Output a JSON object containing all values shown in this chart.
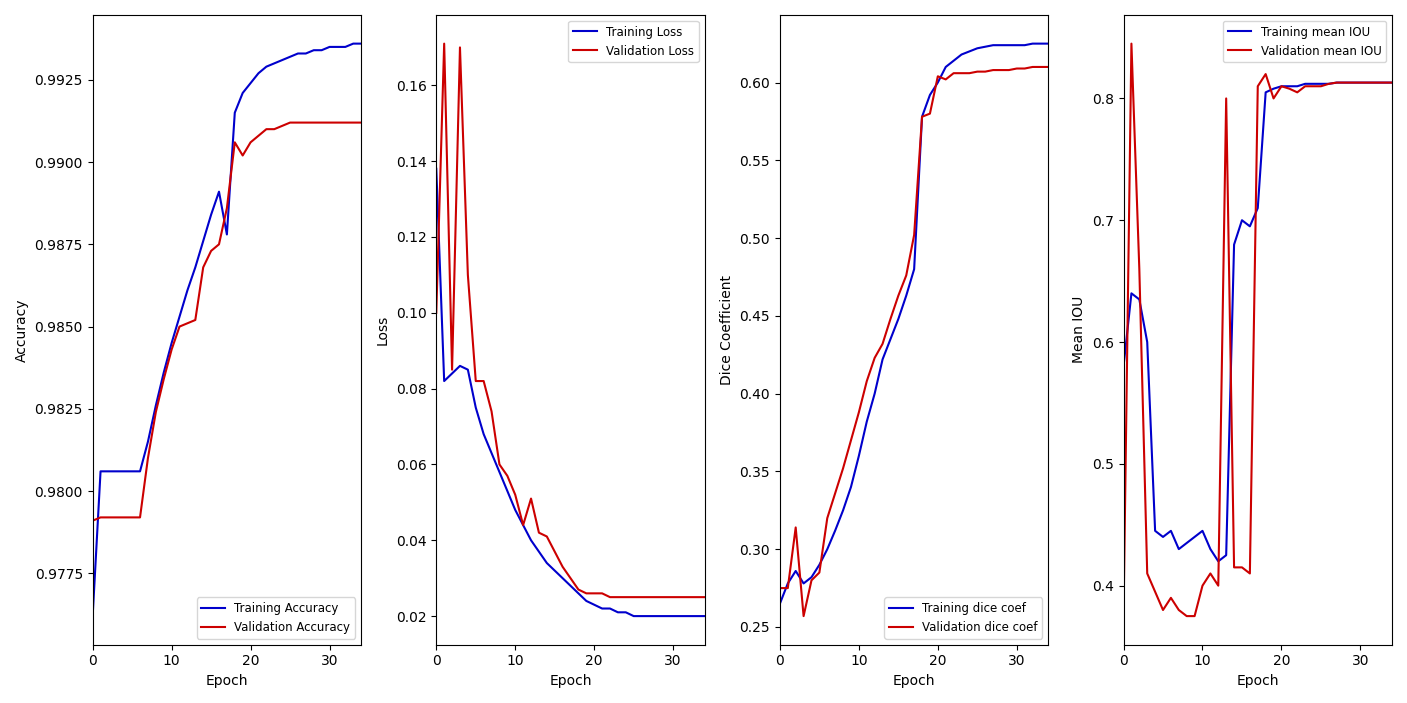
{
  "train_acc": [
    0.9762,
    0.9806,
    0.9806,
    0.9806,
    0.9806,
    0.9806,
    0.9806,
    0.9815,
    0.9826,
    0.9836,
    0.9845,
    0.9853,
    0.9861,
    0.9868,
    0.9876,
    0.9884,
    0.9891,
    0.9878,
    0.9915,
    0.9921,
    0.9924,
    0.9927,
    0.9929,
    0.993,
    0.9931,
    0.9932,
    0.9933,
    0.9933,
    0.9934,
    0.9934,
    0.9935,
    0.9935,
    0.9935,
    0.9936,
    0.9936
  ],
  "val_acc": [
    0.9791,
    0.9792,
    0.9792,
    0.9792,
    0.9792,
    0.9792,
    0.9792,
    0.981,
    0.9824,
    0.9834,
    0.9843,
    0.985,
    0.9851,
    0.9852,
    0.9868,
    0.9873,
    0.9875,
    0.9886,
    0.9906,
    0.9902,
    0.9906,
    0.9908,
    0.991,
    0.991,
    0.9911,
    0.9912,
    0.9912,
    0.9912,
    0.9912,
    0.9912,
    0.9912,
    0.9912,
    0.9912,
    0.9912,
    0.9912
  ],
  "train_loss": [
    0.138,
    0.082,
    0.084,
    0.086,
    0.085,
    0.075,
    0.068,
    0.063,
    0.058,
    0.053,
    0.048,
    0.044,
    0.04,
    0.037,
    0.034,
    0.032,
    0.03,
    0.028,
    0.026,
    0.024,
    0.023,
    0.022,
    0.022,
    0.021,
    0.021,
    0.02,
    0.02,
    0.02,
    0.02,
    0.02,
    0.02,
    0.02,
    0.02,
    0.02,
    0.02
  ],
  "val_loss": [
    0.1,
    0.171,
    0.085,
    0.17,
    0.11,
    0.082,
    0.082,
    0.074,
    0.06,
    0.057,
    0.052,
    0.044,
    0.051,
    0.042,
    0.041,
    0.037,
    0.033,
    0.03,
    0.027,
    0.026,
    0.026,
    0.026,
    0.025,
    0.025,
    0.025,
    0.025,
    0.025,
    0.025,
    0.025,
    0.025,
    0.025,
    0.025,
    0.025,
    0.025,
    0.025
  ],
  "train_dice": [
    0.265,
    0.278,
    0.286,
    0.278,
    0.282,
    0.29,
    0.3,
    0.312,
    0.325,
    0.34,
    0.36,
    0.382,
    0.4,
    0.422,
    0.435,
    0.448,
    0.463,
    0.48,
    0.578,
    0.592,
    0.6,
    0.61,
    0.614,
    0.618,
    0.62,
    0.622,
    0.623,
    0.624,
    0.624,
    0.624,
    0.624,
    0.624,
    0.625,
    0.625,
    0.625
  ],
  "val_dice": [
    0.275,
    0.275,
    0.314,
    0.257,
    0.28,
    0.285,
    0.32,
    0.336,
    0.352,
    0.37,
    0.388,
    0.408,
    0.423,
    0.432,
    0.448,
    0.463,
    0.476,
    0.502,
    0.578,
    0.58,
    0.604,
    0.602,
    0.606,
    0.606,
    0.606,
    0.607,
    0.607,
    0.608,
    0.608,
    0.608,
    0.609,
    0.609,
    0.61,
    0.61,
    0.61
  ],
  "train_iou": [
    0.58,
    0.64,
    0.635,
    0.6,
    0.445,
    0.44,
    0.445,
    0.43,
    0.435,
    0.44,
    0.445,
    0.43,
    0.42,
    0.425,
    0.68,
    0.7,
    0.695,
    0.71,
    0.805,
    0.808,
    0.81,
    0.81,
    0.81,
    0.812,
    0.812,
    0.812,
    0.812,
    0.813,
    0.813,
    0.813,
    0.813,
    0.813,
    0.813,
    0.813,
    0.813
  ],
  "val_iou": [
    0.375,
    0.845,
    0.66,
    0.41,
    0.395,
    0.38,
    0.39,
    0.38,
    0.375,
    0.375,
    0.4,
    0.41,
    0.4,
    0.8,
    0.415,
    0.415,
    0.41,
    0.81,
    0.82,
    0.8,
    0.81,
    0.808,
    0.805,
    0.81,
    0.81,
    0.81,
    0.812,
    0.813,
    0.813,
    0.813,
    0.813,
    0.813,
    0.813,
    0.813,
    0.813
  ],
  "train_color": "#0000cc",
  "val_color": "#cc0000"
}
